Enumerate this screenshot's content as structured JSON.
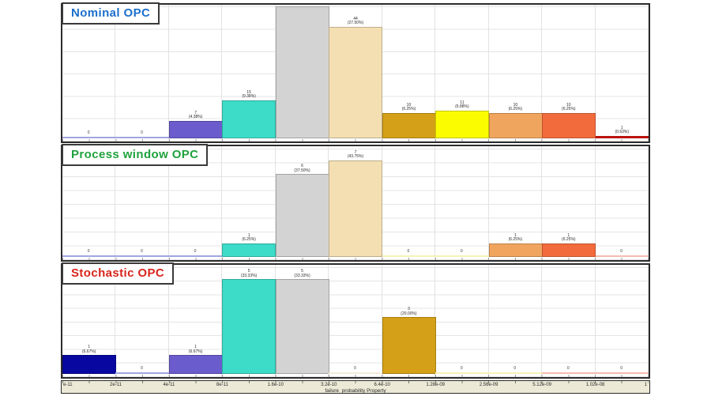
{
  "page": {
    "background": "#ffffff"
  },
  "xaxis": {
    "label": "failure_probability Property",
    "tick_labels": [
      "e-11",
      "2e-11",
      "4e-11",
      "8e-11",
      "1.6e-10",
      "3.2e-10",
      "6.4e-10",
      "1.28e-09",
      "2.56e-09",
      "5.12e-09",
      "1.02e-08",
      "1"
    ]
  },
  "chart_data": [
    {
      "type": "bar",
      "title": "Nominal OPC",
      "title_color": "#1c6fcc",
      "xlabel": "failure_probability Property",
      "bin_edges": [
        "e-11",
        "2e-11",
        "4e-11",
        "8e-11",
        "1.6e-10",
        "3.2e-10",
        "6.4e-10",
        "1.28e-09",
        "2.56e-09",
        "5.12e-09",
        "1.02e-08",
        "1"
      ],
      "counts": [
        0,
        0,
        7,
        15,
        52,
        44,
        10,
        11,
        10,
        10,
        1
      ],
      "value_labels": [
        "0",
        "0",
        "7",
        "15",
        "52",
        "44",
        "10",
        "11",
        "10",
        "10",
        "1"
      ],
      "pct_labels": [
        "",
        "",
        "(4.38%)",
        "(9.38%)",
        "(32.50%)",
        "(27.50%)",
        "(6.25%)",
        "(6.88%)",
        "(6.25%)",
        "(6.25%)",
        "(0.63%)"
      ],
      "colors": [
        "#9fa6e0",
        "#9fa6e0",
        "#6a5ccc",
        "#3cdcc8",
        "#d3d3d3",
        "#f3dfb2",
        "#d4a017",
        "#fcfc00",
        "#f0a55e",
        "#f26b3c",
        "#d81510"
      ],
      "ylim": [
        0,
        53
      ],
      "grid": true,
      "legend": null
    },
    {
      "type": "bar",
      "title": "Process window OPC",
      "title_color": "#1fa23e",
      "xlabel": "failure_probability Property",
      "bin_edges": [
        "e-11",
        "2e-11",
        "4e-11",
        "8e-11",
        "1.6e-10",
        "3.2e-10",
        "6.4e-10",
        "1.28e-09",
        "2.56e-09",
        "5.12e-09",
        "1.02e-08",
        "1"
      ],
      "counts": [
        0,
        0,
        0,
        1,
        6,
        7,
        0,
        0,
        1,
        1,
        0
      ],
      "value_labels": [
        "0",
        "0",
        "0",
        "1",
        "6",
        "7",
        "0",
        "0",
        "1",
        "1",
        "0"
      ],
      "pct_labels": [
        "",
        "",
        "",
        "(6.25%)",
        "(37.50%)",
        "(43.75%)",
        "",
        "",
        "(6.25%)",
        "(6.25%)",
        ""
      ],
      "colors": [
        "#9fa6e0",
        "#9fa6e0",
        "#9fa6e0",
        "#3cdcc8",
        "#d3d3d3",
        "#f3dfb2",
        "#f6f2b8",
        "#f6f2b8",
        "#f0a55e",
        "#f26b3c",
        "#f2bcb2"
      ],
      "ylim": [
        0,
        8
      ],
      "grid": true,
      "legend": null
    },
    {
      "type": "bar",
      "title": "Stochastic OPC",
      "title_color": "#d8251c",
      "xlabel": "failure_probability Property",
      "bin_edges": [
        "e-11",
        "2e-11",
        "4e-11",
        "8e-11",
        "1.6e-10",
        "3.2e-10",
        "6.4e-10",
        "1.28e-09",
        "2.56e-09",
        "5.12e-09",
        "1.02e-08",
        "1"
      ],
      "counts": [
        1,
        0,
        1,
        5,
        5,
        0,
        3,
        0,
        0,
        0,
        0
      ],
      "value_labels": [
        "1",
        "0",
        "1",
        "5",
        "5",
        "0",
        "3",
        "0",
        "0",
        "0",
        "0"
      ],
      "pct_labels": [
        "(6.67%)",
        "",
        "(6.67%)",
        "(33.33%)",
        "(33.33%)",
        "",
        "(20.00%)",
        "",
        "",
        "",
        ""
      ],
      "colors": [
        "#0808a0",
        "#9fa6e0",
        "#6a5ccc",
        "#3cdcc8",
        "#d3d3d3",
        "#f0ecd8",
        "#d4a017",
        "#f6f2b8",
        "#f6f2b8",
        "#f2bcb2",
        "#f2bcb2"
      ],
      "ylim": [
        0,
        5.75
      ],
      "grid": true,
      "legend": null
    }
  ]
}
